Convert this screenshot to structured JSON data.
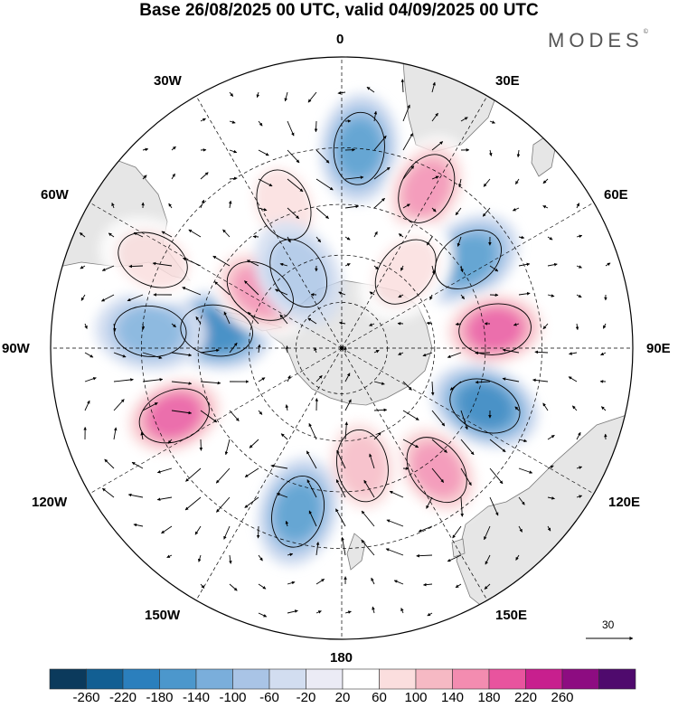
{
  "title": "Base 26/08/2025 00 UTC, valid 04/09/2025 00 UTC",
  "brand": {
    "text": "MODES",
    "mark": "©"
  },
  "map": {
    "projection": "polar stereographic, south pole",
    "longitude_labels": {
      "lon_0": "0",
      "lon_30e": "30E",
      "lon_60e": "60E",
      "lon_90e": "90E",
      "lon_120e": "120E",
      "lon_150e": "150E",
      "lon_180": "180",
      "lon_150w": "150W",
      "lon_120w": "120W",
      "lon_90w": "90W",
      "lon_60w": "60W",
      "lon_30w": "30W"
    },
    "reference_vector": "30",
    "colors": {
      "land": "#e6e6e6",
      "coast": "#7a7a7a",
      "grid": "#000000"
    }
  },
  "colorbar": {
    "ticks": [
      "-260",
      "-220",
      "-180",
      "-140",
      "-100",
      "-60",
      "-20",
      "20",
      "60",
      "100",
      "140",
      "180",
      "220",
      "260"
    ],
    "colors": [
      "#0b3a5c",
      "#125f93",
      "#2b7fbd",
      "#4c97cc",
      "#7aaedb",
      "#a9c4e6",
      "#d2ddf0",
      "#ebebf5",
      "#ffffff",
      "#fbdede",
      "#f6b9c4",
      "#f38cb0",
      "#e8549e",
      "#c81f8e",
      "#8d0c81",
      "#4f0a6d"
    ]
  },
  "anomaly_centers": [
    {
      "lon": 5,
      "lat": -30,
      "value": -160
    },
    {
      "lon": 28,
      "lat": -35,
      "value": 150
    },
    {
      "lon": 55,
      "lat": -42,
      "value": -150
    },
    {
      "lon": 83,
      "lat": -42,
      "value": 180
    },
    {
      "lon": 112,
      "lat": -42,
      "value": -200
    },
    {
      "lon": 142,
      "lat": -42,
      "value": 160
    },
    {
      "lon": 170,
      "lat": -52,
      "value": 120
    },
    {
      "lon": -165,
      "lat": -38,
      "value": -140
    },
    {
      "lon": -112,
      "lat": -35,
      "value": 190
    },
    {
      "lon": -82,
      "lat": -50,
      "value": -180
    },
    {
      "lon": -55,
      "lat": -58,
      "value": 160
    },
    {
      "lon": -22,
      "lat": -42,
      "value": 90
    },
    {
      "lon": -85,
      "lat": -32,
      "value": -110
    },
    {
      "lon": -65,
      "lat": -28,
      "value": 60
    },
    {
      "lon": 40,
      "lat": -58,
      "value": 80
    },
    {
      "lon": -30,
      "lat": -62,
      "value": -60
    }
  ]
}
